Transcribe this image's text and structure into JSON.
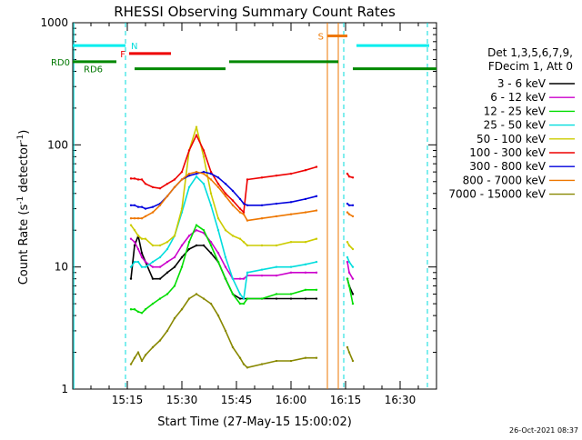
{
  "chart_data": {
    "type": "line",
    "title": "RHESSI Observing Summary Count Rates",
    "xlabel": "Start Time (27-May-15 15:00:02)",
    "ylabel": "Count Rate (s⁻¹ detector⁻¹)",
    "ylabel_main": "Count Rate (s",
    "ylabel_sup1": "-1",
    "ylabel_mid": " detector",
    "ylabel_sup2": "-1",
    "ylabel_end": ")",
    "yscale": "log",
    "ylim": [
      1,
      1000
    ],
    "xlim_min": [
      0,
      100
    ],
    "x_unit": "minutes after 15:00:02",
    "x_ticks": [
      {
        "t": 15,
        "label": "15:15"
      },
      {
        "t": 30,
        "label": "15:30"
      },
      {
        "t": 45,
        "label": "15:45"
      },
      {
        "t": 60,
        "label": "16:00"
      },
      {
        "t": 75,
        "label": "16:15"
      },
      {
        "t": 90,
        "label": "16:30"
      }
    ],
    "y_ticks": [
      {
        "v": 1,
        "label": "1"
      },
      {
        "v": 10,
        "label": "10"
      },
      {
        "v": 100,
        "label": "100"
      },
      {
        "v": 1000,
        "label": "1000"
      }
    ],
    "legend_header": [
      "Det 1,3,5,6,7,9,",
      "FDecim 1, Att 0"
    ],
    "legend_placement": "right",
    "timestamp": "26-Oct-2021 08:37",
    "grid": false,
    "series": [
      {
        "name": "3 - 6 keV",
        "color": "#000000",
        "x": [
          14.5,
          16,
          17,
          18,
          19,
          20,
          22,
          24,
          26,
          28,
          30,
          32,
          34,
          36,
          38,
          40,
          42,
          44,
          46,
          47,
          48,
          52,
          56,
          60,
          64,
          67,
          71,
          72,
          73,
          74,
          75,
          75.5,
          76,
          77
        ],
        "y": [
          null,
          8,
          15,
          18,
          13,
          11,
          8,
          8,
          9,
          10,
          12,
          14,
          15,
          15,
          13,
          11,
          8,
          6,
          5.5,
          5.5,
          5.5,
          5.5,
          5.5,
          5.5,
          5.5,
          5.5,
          null,
          null,
          null,
          null,
          null,
          8,
          7,
          6
        ]
      },
      {
        "name": "6 - 12 keV",
        "color": "#cc00cc",
        "x": [
          14.5,
          16,
          17,
          18,
          19,
          20,
          22,
          24,
          26,
          28,
          30,
          32,
          34,
          36,
          38,
          40,
          42,
          44,
          46,
          47,
          48,
          52,
          56,
          60,
          64,
          67,
          71,
          75,
          75.5,
          76,
          77
        ],
        "y": [
          null,
          17,
          16,
          14,
          12,
          11,
          10,
          10,
          11,
          12,
          15,
          18,
          20,
          19,
          16,
          13,
          10,
          8,
          8,
          8,
          8.5,
          8.5,
          8.5,
          9,
          9,
          9,
          null,
          null,
          11,
          9,
          8
        ]
      },
      {
        "name": "12 - 25 keV",
        "color": "#00dd00",
        "x": [
          14.5,
          16,
          17,
          18,
          19,
          20,
          22,
          24,
          26,
          28,
          30,
          32,
          34,
          36,
          38,
          40,
          42,
          44,
          46,
          47,
          48,
          52,
          56,
          60,
          64,
          67,
          71,
          75,
          75.5,
          76,
          77
        ],
        "y": [
          null,
          4.5,
          4.5,
          4.3,
          4.2,
          4.5,
          5,
          5.5,
          6,
          7,
          10,
          16,
          22,
          20,
          15,
          11,
          8,
          6,
          5,
          5,
          5.5,
          5.5,
          6,
          6,
          6.5,
          6.5,
          null,
          null,
          8,
          7,
          5
        ]
      },
      {
        "name": "25 - 50 keV",
        "color": "#00dddd",
        "x": [
          14.5,
          16,
          17,
          18,
          19,
          20,
          22,
          24,
          26,
          28,
          30,
          32,
          34,
          36,
          38,
          40,
          42,
          44,
          46,
          47,
          48,
          52,
          56,
          60,
          64,
          67,
          71,
          75,
          75.5,
          76,
          77
        ],
        "y": [
          null,
          10,
          11,
          11,
          10,
          10,
          11,
          12,
          14,
          18,
          28,
          45,
          55,
          48,
          32,
          20,
          12,
          8,
          6,
          5.5,
          9,
          9.5,
          10,
          10,
          10.5,
          11,
          null,
          null,
          12,
          11,
          10
        ]
      },
      {
        "name": "50 - 100 keV",
        "color": "#cccc00",
        "x": [
          14.5,
          16,
          17,
          18,
          19,
          20,
          22,
          24,
          26,
          28,
          30,
          32,
          34,
          36,
          38,
          40,
          42,
          44,
          46,
          47,
          48,
          52,
          56,
          60,
          64,
          67,
          71,
          75,
          75.5,
          76,
          77
        ],
        "y": [
          null,
          22,
          20,
          18,
          17,
          17,
          15,
          15,
          16,
          18,
          30,
          90,
          140,
          80,
          40,
          25,
          20,
          18,
          17,
          16,
          15,
          15,
          15,
          16,
          16,
          17,
          null,
          null,
          16,
          15,
          14
        ]
      },
      {
        "name": "100 - 300 keV",
        "color": "#ee0000",
        "x": [
          14.5,
          16,
          17,
          18,
          19,
          20,
          22,
          24,
          26,
          28,
          30,
          32,
          34,
          36,
          38,
          40,
          42,
          44,
          46,
          47,
          48,
          52,
          56,
          60,
          64,
          67,
          71,
          75,
          75.5,
          76,
          77
        ],
        "y": [
          null,
          53,
          53,
          52,
          52,
          48,
          45,
          44,
          48,
          52,
          60,
          90,
          120,
          90,
          60,
          48,
          40,
          35,
          30,
          28,
          52,
          54,
          56,
          58,
          62,
          66,
          null,
          null,
          58,
          55,
          54
        ]
      },
      {
        "name": "300 - 800 keV",
        "color": "#0000dd",
        "x": [
          14.5,
          16,
          17,
          18,
          19,
          20,
          22,
          24,
          26,
          28,
          30,
          32,
          34,
          36,
          38,
          40,
          42,
          44,
          46,
          47,
          48,
          52,
          56,
          60,
          64,
          67,
          71,
          75,
          75.5,
          76,
          77
        ],
        "y": [
          null,
          32,
          32,
          31,
          31,
          30,
          31,
          33,
          38,
          45,
          52,
          56,
          58,
          60,
          58,
          54,
          48,
          42,
          36,
          33,
          32,
          32,
          33,
          34,
          36,
          38,
          null,
          null,
          33,
          32,
          32
        ]
      },
      {
        "name": "800 - 7000 keV",
        "color": "#ee7700",
        "x": [
          14.5,
          16,
          17,
          18,
          19,
          20,
          22,
          24,
          26,
          28,
          30,
          32,
          34,
          36,
          38,
          40,
          42,
          44,
          46,
          47,
          48,
          52,
          56,
          60,
          64,
          67,
          71,
          75,
          75.5,
          76,
          77
        ],
        "y": [
          null,
          25,
          25,
          25,
          25,
          26,
          28,
          32,
          38,
          45,
          52,
          58,
          60,
          58,
          52,
          45,
          38,
          32,
          28,
          27,
          24,
          25,
          26,
          27,
          28,
          29,
          null,
          null,
          28,
          27,
          26
        ]
      },
      {
        "name": "7000 - 15000 keV",
        "color": "#888800",
        "x": [
          14.5,
          16,
          17,
          18,
          19,
          20,
          22,
          24,
          26,
          28,
          30,
          32,
          34,
          36,
          38,
          40,
          42,
          44,
          46,
          47,
          48,
          52,
          56,
          60,
          64,
          67,
          71,
          75,
          75.5,
          76,
          77
        ],
        "y": [
          null,
          1.6,
          1.8,
          2.0,
          1.7,
          1.9,
          2.2,
          2.5,
          3,
          3.8,
          4.5,
          5.5,
          6,
          5.5,
          5,
          4,
          3,
          2.2,
          1.8,
          1.6,
          1.5,
          1.6,
          1.7,
          1.7,
          1.8,
          1.8,
          null,
          null,
          2.2,
          2,
          1.7
        ]
      }
    ],
    "flag_bars": [
      {
        "label": "N",
        "label_color": "#00dddd",
        "color": "#00eeee",
        "level": 650,
        "segments": [
          [
            0,
            14.5
          ],
          [
            78,
            98
          ]
        ]
      },
      {
        "label": "F",
        "label_color": "#ee0000",
        "color": "#ee0000",
        "level": 560,
        "segments": [
          [
            15.5,
            27
          ]
        ]
      },
      {
        "label": "S",
        "label_color": "#ee7700",
        "color": "#ee7700",
        "level": 780,
        "segments": [
          [
            70,
            75.5
          ]
        ]
      },
      {
        "label": "RD0",
        "label_color": "#007700",
        "color": "#008800",
        "level": 480,
        "segments": [
          [
            0,
            12
          ],
          [
            43,
            73
          ]
        ]
      },
      {
        "label": "RD6",
        "label_color": "#007700",
        "color": "#008800",
        "level": 420,
        "segments": [
          [
            17,
            42
          ],
          [
            77,
            100
          ]
        ]
      }
    ],
    "vertical_markers": [
      {
        "t": 14.5,
        "color": "#00dddd",
        "style": "dashed"
      },
      {
        "t": 74.5,
        "color": "#00dddd",
        "style": "dashed"
      },
      {
        "t": 97.5,
        "color": "#00dddd",
        "style": "dashed"
      },
      {
        "t": 70,
        "color": "#ee7700",
        "style": "solid"
      },
      {
        "t": 73,
        "color": "#ee7700",
        "style": "solid"
      },
      {
        "t": 0.3,
        "color": "#00dddd",
        "style": "solid"
      }
    ]
  }
}
